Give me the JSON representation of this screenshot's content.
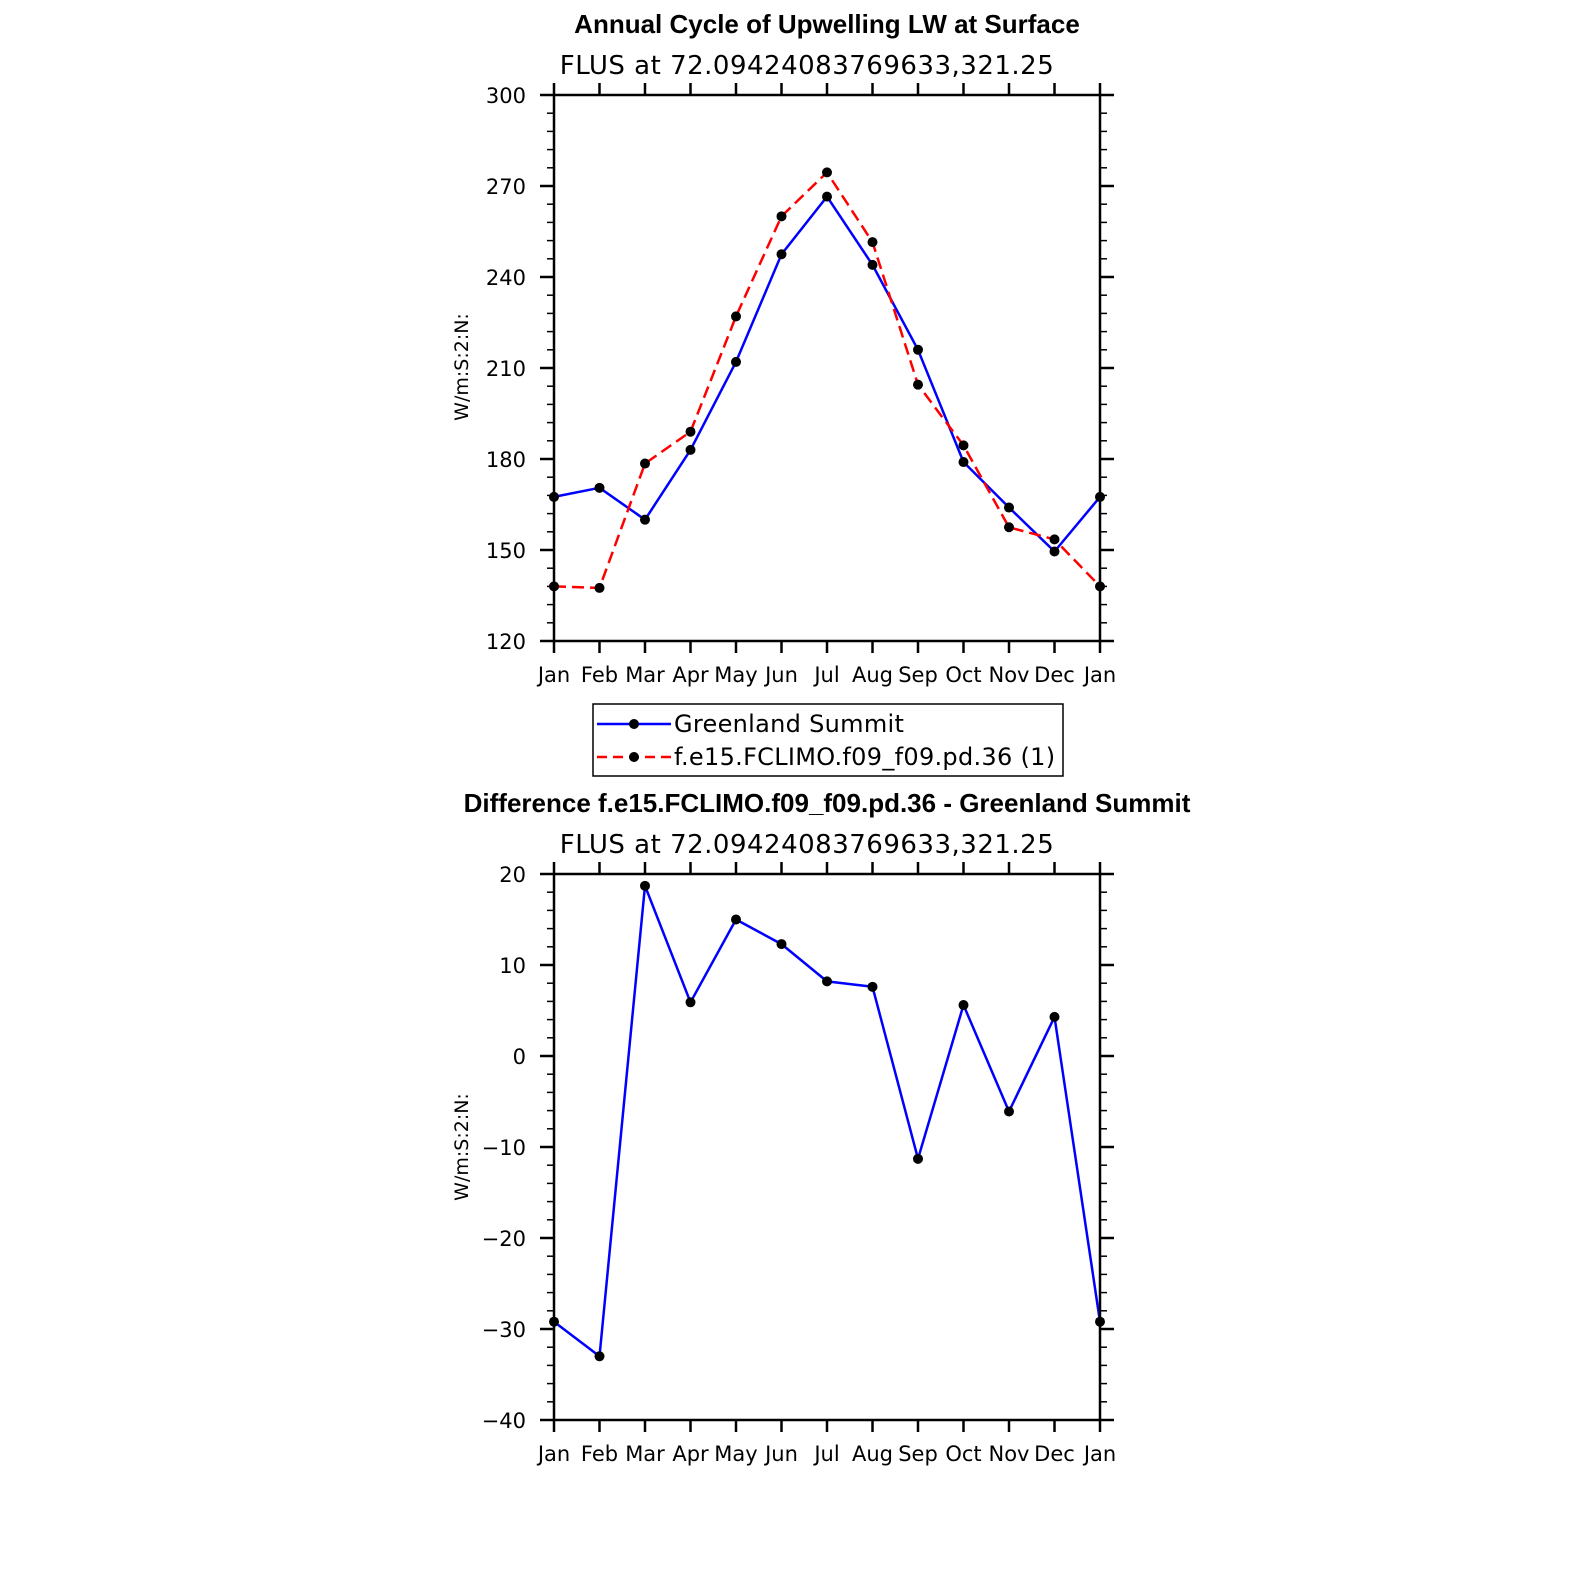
{
  "chart_data": [
    {
      "type": "line",
      "title": "Annual Cycle of Upwelling LW at Surface",
      "subtitle": "FLUS  at  72.09424083769633,321.25",
      "ylabel": "W/m:S:2:N:",
      "xlabel": "",
      "categories": [
        "Jan",
        "Feb",
        "Mar",
        "Apr",
        "May",
        "Jun",
        "Jul",
        "Aug",
        "Sep",
        "Oct",
        "Nov",
        "Dec",
        "Jan"
      ],
      "ylim": [
        120,
        300
      ],
      "yticks": [
        "120",
        "150",
        "180",
        "210",
        "240",
        "270",
        "300"
      ],
      "series": [
        {
          "name": "Greenland Summit",
          "color": "#0000ff",
          "dash": "solid",
          "values": [
            167.5,
            170.5,
            160,
            183,
            212,
            247.5,
            266.5,
            244,
            216,
            179,
            164,
            149.5,
            167.5
          ]
        },
        {
          "name": "f.e15.FCLIMO.f09_f09.pd.36 (1)",
          "color": "#ff0000",
          "dash": "dashed",
          "values": [
            138,
            137.5,
            178.5,
            189,
            227,
            260,
            274.5,
            251.5,
            204.5,
            184.5,
            157.5,
            153.5,
            138
          ]
        }
      ],
      "legend": "below"
    },
    {
      "type": "line",
      "title": "Difference f.e15.FCLIMO.f09_f09.pd.36 - Greenland Summit",
      "subtitle": "FLUS  at  72.09424083769633,321.25",
      "ylabel": "W/m:S:2:N:",
      "xlabel": "",
      "categories": [
        "Jan",
        "Feb",
        "Mar",
        "Apr",
        "May",
        "Jun",
        "Jul",
        "Aug",
        "Sep",
        "Oct",
        "Nov",
        "Dec",
        "Jan"
      ],
      "ylim": [
        -40,
        20
      ],
      "yticks": [
        "−40",
        "−30",
        "−20",
        "−10",
        "0",
        "10",
        "20"
      ],
      "series": [
        {
          "color": "#0000ff",
          "dash": "solid",
          "values": [
            -29.2,
            -33,
            18.7,
            5.9,
            15,
            12.3,
            8.2,
            7.6,
            -11.3,
            5.6,
            -6.1,
            4.3,
            -29.2
          ]
        }
      ]
    }
  ]
}
